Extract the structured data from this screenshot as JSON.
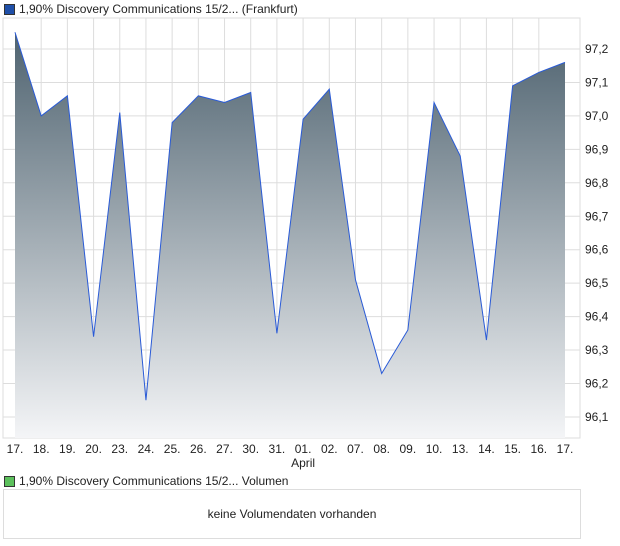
{
  "legend_price": "1,90% Discovery Communications 15/2... (Frankfurt)",
  "legend_volume": "1,90% Discovery Communications 15/2... Volumen",
  "volume_message": "keine Volumendaten vorhanden",
  "colors": {
    "price_marker": "#1f4fa8",
    "volume_marker": "#5cc05c",
    "line": "#2a5bd7",
    "fill_top": "#4f6370",
    "fill_bottom": "#f4f5f7"
  },
  "chart_data": {
    "type": "area",
    "title": "1,90% Discovery Communications 15/2... (Frankfurt)",
    "x": [
      "17.",
      "18.",
      "19.",
      "20.",
      "23.",
      "24.",
      "25.",
      "26.",
      "27.",
      "30.",
      "31.",
      "01.",
      "02.",
      "07.",
      "08.",
      "09.",
      "10.",
      "13.",
      "14.",
      "15.",
      "16.",
      "17."
    ],
    "month_label": "April",
    "values": [
      97.25,
      97.0,
      97.06,
      96.34,
      97.01,
      96.15,
      96.98,
      97.06,
      97.04,
      97.07,
      96.35,
      96.99,
      97.08,
      96.51,
      96.23,
      96.36,
      97.04,
      96.88,
      96.33,
      97.09,
      97.13,
      97.16
    ],
    "yticks": [
      "97,2",
      "97,1",
      "97,0",
      "96,9",
      "96,8",
      "96,7",
      "96,6",
      "96,5",
      "96,4",
      "96,3",
      "96,2",
      "96,1"
    ],
    "ylim": [
      96.0,
      97.29
    ],
    "grid": true
  }
}
